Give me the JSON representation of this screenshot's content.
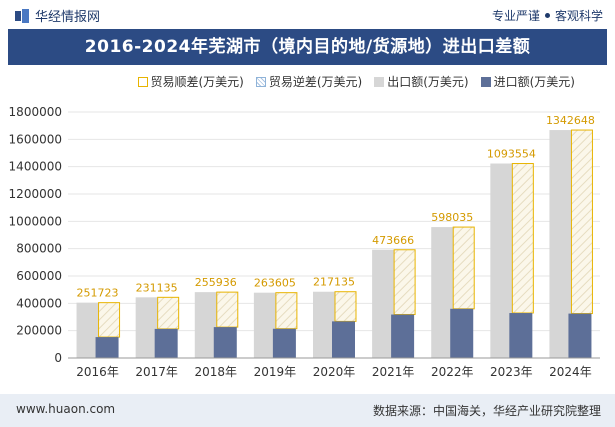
{
  "header": {
    "brand": "华经情报网",
    "tagline_left": "专业严谨",
    "tagline_right": "客观科学"
  },
  "title": "2016-2024年芜湖市（境内目的地/货源地）进出口差额",
  "legend": {
    "surplus": "贸易顺差(万美元)",
    "deficit": "贸易逆差(万美元)",
    "export": "出口额(万美元)",
    "import": "进口额(万美元)"
  },
  "colors": {
    "title_bg": "#2c4b84",
    "export": "#d6d6d6",
    "import": "#5d6f98",
    "surplus_border": "#e8b400",
    "footer_bg": "#e9eef5"
  },
  "chart_data": {
    "type": "bar",
    "categories": [
      "2016年",
      "2017年",
      "2018年",
      "2019年",
      "2020年",
      "2021年",
      "2022年",
      "2023年",
      "2024年"
    ],
    "series": [
      {
        "name": "出口额(万美元)",
        "values": [
          405000,
          444000,
          482000,
          478000,
          485000,
          792000,
          958000,
          1423000,
          1668000
        ]
      },
      {
        "name": "进口额(万美元)",
        "values": [
          153000,
          213000,
          226000,
          214000,
          268000,
          318000,
          360000,
          329000,
          325000
        ]
      },
      {
        "name": "贸易顺差(万美元)",
        "values": [
          251723,
          231135,
          255936,
          263605,
          217135,
          473666,
          598035,
          1093554,
          1342648
        ]
      }
    ],
    "data_labels": [
      "251723",
      "231135",
      "255936",
      "263605",
      "217135",
      "473666",
      "598035",
      "1093554",
      "1342648"
    ],
    "y_ticks": [
      "0",
      "200000",
      "400000",
      "600000",
      "800000",
      "1000000",
      "1200000",
      "1400000",
      "1600000",
      "1800000"
    ],
    "ylim": [
      0,
      1800000
    ],
    "grid": true,
    "legend_position": "top-right"
  },
  "footer": {
    "url": "www.huaon.com",
    "source": "数据来源：中国海关，华经产业研究院整理"
  }
}
